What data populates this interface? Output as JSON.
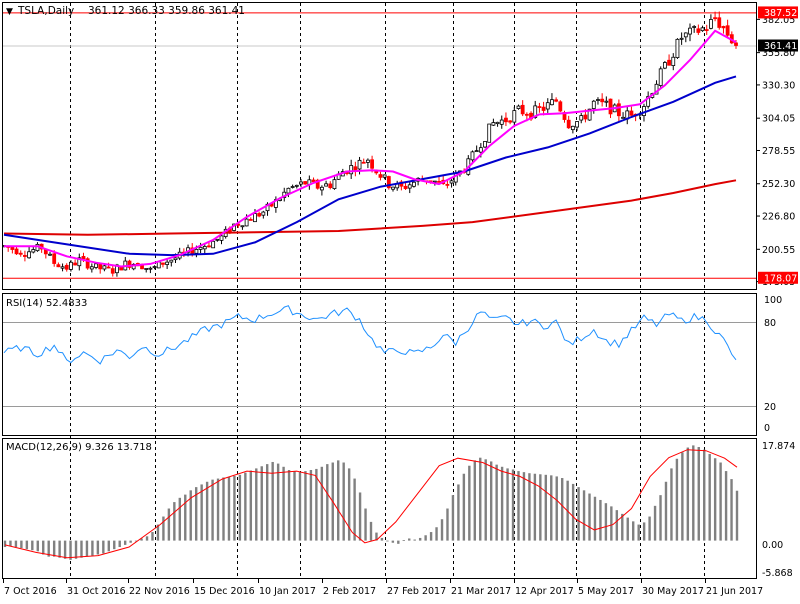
{
  "header": {
    "symbol_label": "TSLA,Daily",
    "ohlc": "361.12 366.33 359.86 361.41"
  },
  "price_panel": {
    "price_ticks": [
      "382.05",
      "355.80",
      "330.30",
      "304.05",
      "278.55",
      "252.30",
      "226.80",
      "200.55",
      "175.05"
    ],
    "markers": [
      {
        "label": "387.52",
        "color": "#ff0000"
      },
      {
        "label": "361.41",
        "color": "#000000"
      },
      {
        "label": "178.07",
        "color": "#ff0000"
      }
    ]
  },
  "rsi_panel": {
    "label": "RSI(14) 52.4833",
    "ticks": [
      "100",
      "80",
      "20",
      "0"
    ]
  },
  "macd_panel": {
    "label": "MACD(12,26,9) 9.326 13.718",
    "ticks": [
      "17.874",
      "0.00",
      "-5.868"
    ]
  },
  "date_labels": [
    "7 Oct 2016",
    "31 Oct 2016",
    "22 Nov 2016",
    "15 Dec 2016",
    "10 Jan 2017",
    "2 Feb 2017",
    "27 Feb 2017",
    "21 Mar 2017",
    "12 Apr 2017",
    "5 May 2017",
    "30 May 2017",
    "21 Jun 2017"
  ],
  "colors": {
    "ma_fast": "#ff00ff",
    "ma_mid": "#0000cc",
    "ma_slow": "#dd0000",
    "candle_up": "#ffffff",
    "candle_down": "#ff0000",
    "rsi_line": "#1e90ff",
    "macd_hist": "#808080",
    "macd_signal": "#ff0000",
    "grid": "#000000"
  },
  "chart_data": {
    "type": "candlestick",
    "symbol": "TSLA",
    "timeframe": "Daily",
    "price_ylim": [
      175.05,
      395
    ],
    "price_path": [
      [
        0,
        203
      ],
      [
        5,
        198
      ],
      [
        9,
        202
      ],
      [
        12,
        190
      ],
      [
        15,
        186
      ],
      [
        18,
        192
      ],
      [
        22,
        186
      ],
      [
        26,
        184
      ],
      [
        29,
        189
      ],
      [
        32,
        190
      ],
      [
        35,
        184
      ],
      [
        38,
        190
      ],
      [
        42,
        195
      ],
      [
        45,
        200
      ],
      [
        49,
        205
      ],
      [
        52,
        210
      ],
      [
        55,
        220
      ],
      [
        58,
        224
      ],
      [
        62,
        230
      ],
      [
        65,
        238
      ],
      [
        68,
        248
      ],
      [
        72,
        253
      ],
      [
        75,
        250
      ],
      [
        78,
        252
      ],
      [
        81,
        262
      ],
      [
        84,
        267
      ],
      [
        87,
        272
      ],
      [
        89,
        263
      ],
      [
        92,
        252
      ],
      [
        95,
        249
      ],
      [
        99,
        255
      ],
      [
        102,
        256
      ],
      [
        105,
        250
      ],
      [
        108,
        258
      ],
      [
        111,
        268
      ],
      [
        114,
        285
      ],
      [
        117,
        300
      ],
      [
        120,
        303
      ],
      [
        123,
        310
      ],
      [
        126,
        308
      ],
      [
        129,
        312
      ],
      [
        132,
        318
      ],
      [
        135,
        300
      ],
      [
        138,
        302
      ],
      [
        141,
        316
      ],
      [
        144,
        314
      ],
      [
        147,
        308
      ],
      [
        150,
        306
      ],
      [
        153,
        315
      ],
      [
        156,
        333
      ],
      [
        159,
        350
      ],
      [
        162,
        368
      ],
      [
        165,
        372
      ],
      [
        168,
        376
      ],
      [
        170,
        383
      ],
      [
        172,
        375
      ],
      [
        174,
        366
      ],
      [
        175,
        361.41
      ]
    ],
    "series_ma_fast": [
      [
        0,
        203
      ],
      [
        8,
        203
      ],
      [
        15,
        195
      ],
      [
        22,
        190
      ],
      [
        28,
        187
      ],
      [
        35,
        189
      ],
      [
        42,
        196
      ],
      [
        50,
        208
      ],
      [
        58,
        226
      ],
      [
        66,
        241
      ],
      [
        74,
        253
      ],
      [
        82,
        262
      ],
      [
        88,
        263
      ],
      [
        93,
        262
      ],
      [
        98,
        256
      ],
      [
        104,
        252
      ],
      [
        110,
        262
      ],
      [
        116,
        282
      ],
      [
        122,
        298
      ],
      [
        128,
        307
      ],
      [
        134,
        308
      ],
      [
        140,
        310
      ],
      [
        146,
        312
      ],
      [
        152,
        315
      ],
      [
        158,
        330
      ],
      [
        164,
        350
      ],
      [
        170,
        373
      ],
      [
        175,
        364
      ]
    ],
    "series_ma_mid": [
      [
        0,
        212
      ],
      [
        10,
        207
      ],
      [
        20,
        202
      ],
      [
        30,
        197
      ],
      [
        40,
        196
      ],
      [
        50,
        197
      ],
      [
        60,
        206
      ],
      [
        70,
        222
      ],
      [
        80,
        240
      ],
      [
        90,
        250
      ],
      [
        100,
        256
      ],
      [
        110,
        262
      ],
      [
        120,
        273
      ],
      [
        130,
        281
      ],
      [
        140,
        292
      ],
      [
        150,
        305
      ],
      [
        160,
        317
      ],
      [
        170,
        332
      ],
      [
        175,
        337
      ]
    ],
    "series_ma_slow": [
      [
        0,
        213
      ],
      [
        20,
        212
      ],
      [
        40,
        213
      ],
      [
        60,
        214
      ],
      [
        80,
        215
      ],
      [
        100,
        219
      ],
      [
        112,
        222
      ],
      [
        130,
        230
      ],
      [
        150,
        239
      ],
      [
        160,
        245
      ],
      [
        170,
        252
      ],
      [
        175,
        255
      ]
    ],
    "rsi": {
      "ylim": [
        0,
        100
      ],
      "levels": [
        20,
        80
      ],
      "values": [
        [
          0,
          58
        ],
        [
          4,
          62
        ],
        [
          8,
          57
        ],
        [
          12,
          64
        ],
        [
          15,
          51
        ],
        [
          19,
          58
        ],
        [
          23,
          52
        ],
        [
          27,
          60
        ],
        [
          30,
          55
        ],
        [
          33,
          63
        ],
        [
          37,
          57
        ],
        [
          40,
          61
        ],
        [
          44,
          68
        ],
        [
          48,
          76
        ],
        [
          52,
          80
        ],
        [
          56,
          86
        ],
        [
          60,
          84
        ],
        [
          64,
          89
        ],
        [
          68,
          92
        ],
        [
          71,
          88
        ],
        [
          75,
          84
        ],
        [
          78,
          88
        ],
        [
          82,
          91
        ],
        [
          85,
          84
        ],
        [
          88,
          68
        ],
        [
          91,
          58
        ],
        [
          95,
          60
        ],
        [
          98,
          57
        ],
        [
          102,
          62
        ],
        [
          105,
          72
        ],
        [
          108,
          66
        ],
        [
          111,
          78
        ],
        [
          114,
          90
        ],
        [
          117,
          83
        ],
        [
          120,
          85
        ],
        [
          123,
          80
        ],
        [
          126,
          83
        ],
        [
          129,
          79
        ],
        [
          132,
          82
        ],
        [
          135,
          64
        ],
        [
          138,
          70
        ],
        [
          141,
          76
        ],
        [
          144,
          67
        ],
        [
          147,
          65
        ],
        [
          150,
          75
        ],
        [
          153,
          85
        ],
        [
          156,
          80
        ],
        [
          159,
          88
        ],
        [
          162,
          83
        ],
        [
          165,
          86
        ],
        [
          168,
          84
        ],
        [
          170,
          75
        ],
        [
          172,
          68
        ],
        [
          175,
          52.48
        ]
      ]
    },
    "macd": {
      "ylim": [
        -5.868,
        17.874
      ],
      "histogram": [
        -1.2,
        -1.0,
        -1.2,
        -1.4,
        -1.6,
        -1.8,
        -2.0,
        -2.6,
        -3.0,
        -3.0,
        -3.2,
        -3.4,
        -3.6,
        -3.4,
        -3.2,
        -3.0,
        -2.8,
        -2.6,
        -2.4,
        -2.0,
        -1.6,
        -1.2,
        -0.8,
        -0.4,
        0.0,
        0.4,
        0.8,
        1.6,
        3.0,
        4.5,
        6.0,
        7.2,
        8.0,
        8.6,
        9.4,
        10.0,
        10.5,
        11.0,
        11.4,
        11.6,
        11.8,
        11.9,
        12.1,
        12.3,
        12.7,
        13.1,
        13.5,
        13.9,
        14.3,
        14.7,
        14.4,
        13.8,
        13.2,
        13.0,
        12.8,
        13.0,
        13.2,
        13.4,
        13.8,
        14.3,
        14.6,
        15.0,
        14.6,
        13.5,
        11.6,
        9.0,
        6.0,
        3.5,
        1.5,
        0.5,
        0.0,
        -0.4,
        -0.6,
        0.1,
        0.4,
        0.2,
        0.5,
        1.0,
        1.6,
        2.5,
        4.0,
        6.0,
        8.5,
        10.5,
        12.5,
        14.0,
        15.0,
        15.5,
        15.2,
        14.8,
        14.2,
        13.8,
        13.5,
        13.3,
        13.0,
        12.8,
        12.6,
        12.5,
        12.4,
        12.3,
        12.2,
        12.0,
        11.7,
        11.2,
        10.6,
        10.0,
        9.4,
        8.8,
        8.2,
        7.6,
        7.0,
        6.4,
        5.7,
        5.0,
        4.3,
        3.6,
        3.0,
        3.4,
        4.5,
        6.5,
        8.5,
        11.0,
        13.5,
        15.3,
        16.5,
        17.4,
        17.8,
        17.5,
        17.0,
        16.2,
        15.4,
        14.6,
        13.0,
        11.5,
        9.326
      ],
      "signal": [
        [
          0,
          -0.8
        ],
        [
          10,
          -2.2
        ],
        [
          20,
          -3.2
        ],
        [
          30,
          -2.8
        ],
        [
          40,
          -1.2
        ],
        [
          50,
          3.0
        ],
        [
          60,
          8.0
        ],
        [
          70,
          11.5
        ],
        [
          78,
          13.0
        ],
        [
          86,
          12.6
        ],
        [
          94,
          13.0
        ],
        [
          100,
          12.2
        ],
        [
          106,
          7.0
        ],
        [
          112,
          1.5
        ],
        [
          116,
          -0.4
        ],
        [
          120,
          0.2
        ],
        [
          126,
          3.5
        ],
        [
          134,
          9.5
        ],
        [
          140,
          14.0
        ],
        [
          146,
          15.4
        ],
        [
          154,
          14.6
        ],
        [
          160,
          13.0
        ],
        [
          166,
          12.0
        ],
        [
          172,
          10.2
        ],
        [
          178,
          7.5
        ],
        [
          184,
          4.0
        ],
        [
          190,
          2.0
        ],
        [
          196,
          3.0
        ],
        [
          202,
          6.0
        ],
        [
          208,
          12.0
        ],
        [
          214,
          15.5
        ],
        [
          220,
          17.0
        ],
        [
          226,
          16.8
        ],
        [
          232,
          15.4
        ],
        [
          236,
          13.718
        ]
      ]
    }
  }
}
